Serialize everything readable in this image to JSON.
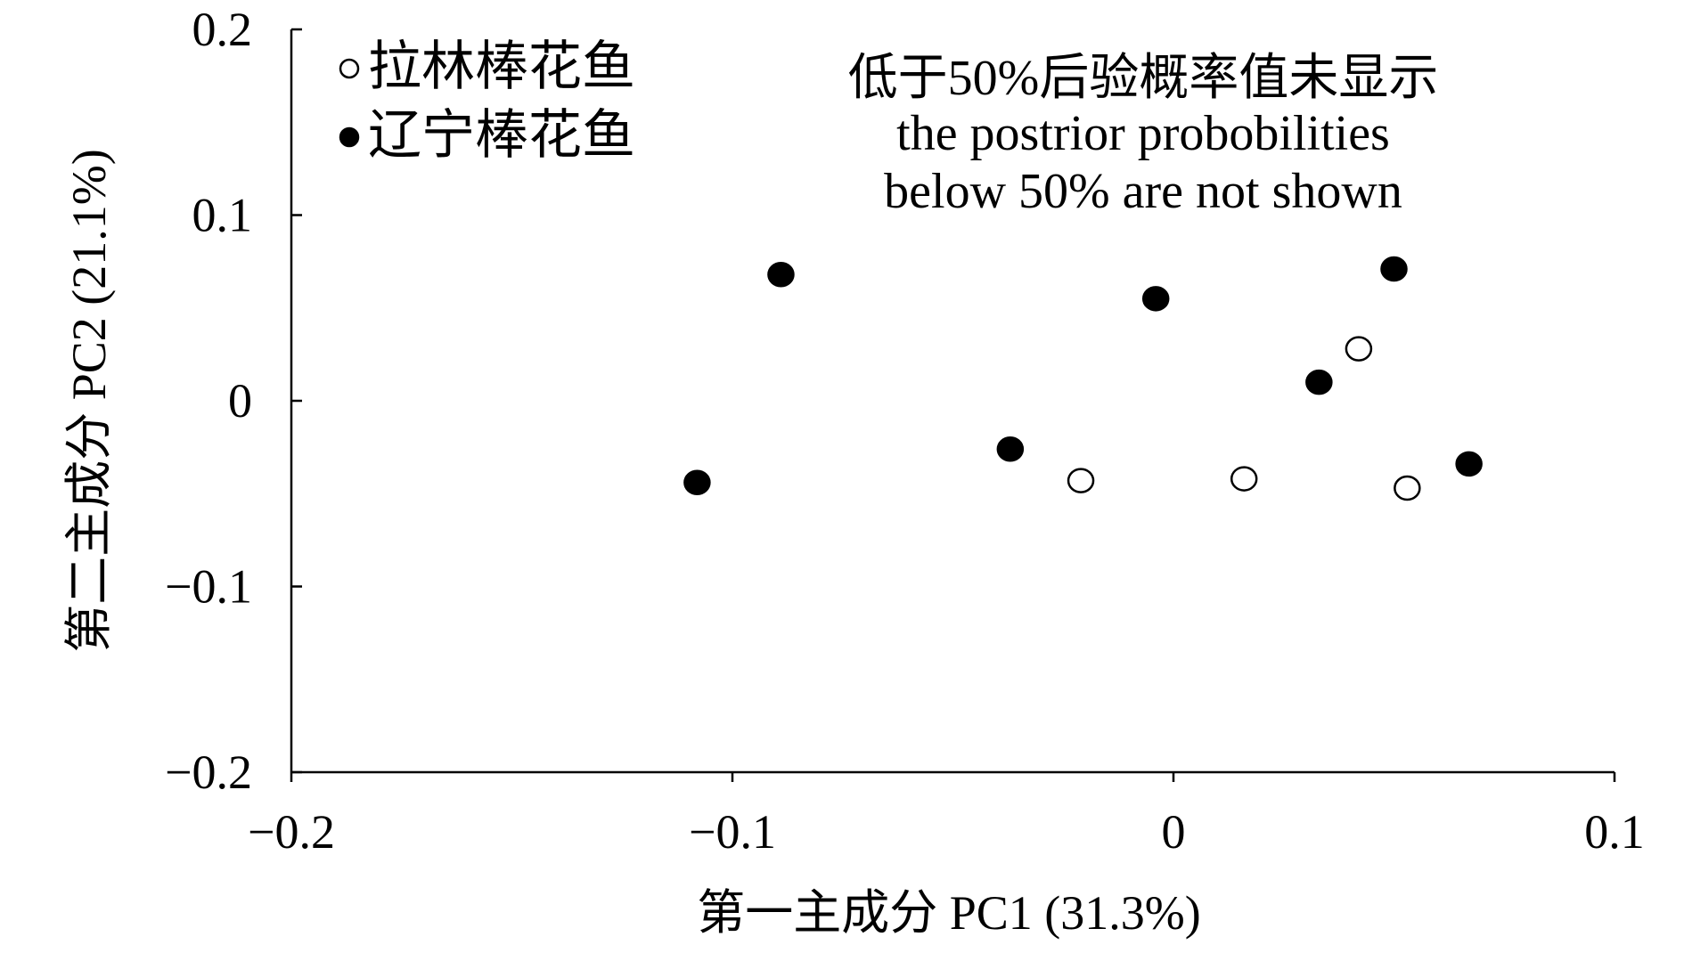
{
  "chart_data": {
    "type": "scatter",
    "xlabel": "第一主成分 PC1 (31.3%)",
    "ylabel": "第二主成分 PC2 (21.1%)",
    "xlim": [
      -0.2,
      0.1
    ],
    "ylim": [
      -0.2,
      0.2
    ],
    "x_ticks": [
      -0.2,
      -0.1,
      0,
      0.1
    ],
    "x_tick_labels": [
      "−0.2",
      "−0.1",
      "0",
      "0.1"
    ],
    "y_ticks": [
      0.2,
      0.1,
      0,
      -0.1,
      -0.2
    ],
    "y_tick_labels": [
      "0.2",
      "0.1",
      "0",
      "−0.1",
      "−0.2"
    ],
    "grid": false,
    "legend_position": "top-left",
    "annotation": [
      "低于50%后验概率值未显示",
      "the postrior probobilities",
      "below 50% are not shown"
    ],
    "series": [
      {
        "name": "拉林棒花鱼",
        "marker": "open-circle",
        "points": [
          [
            -0.021,
            -0.043
          ],
          [
            0.016,
            -0.042
          ],
          [
            0.042,
            0.028
          ],
          [
            0.053,
            -0.047
          ]
        ]
      },
      {
        "name": "辽宁棒花鱼",
        "marker": "filled-circle",
        "points": [
          [
            -0.108,
            -0.044
          ],
          [
            -0.089,
            0.068
          ],
          [
            -0.037,
            -0.026
          ],
          [
            -0.004,
            0.055
          ],
          [
            0.033,
            0.01
          ],
          [
            0.05,
            0.071
          ],
          [
            0.067,
            -0.034
          ]
        ]
      }
    ]
  },
  "colors": {
    "marker_fill": "#000000",
    "open_marker_fill": "#ffffff",
    "marker_stroke": "#000000"
  }
}
